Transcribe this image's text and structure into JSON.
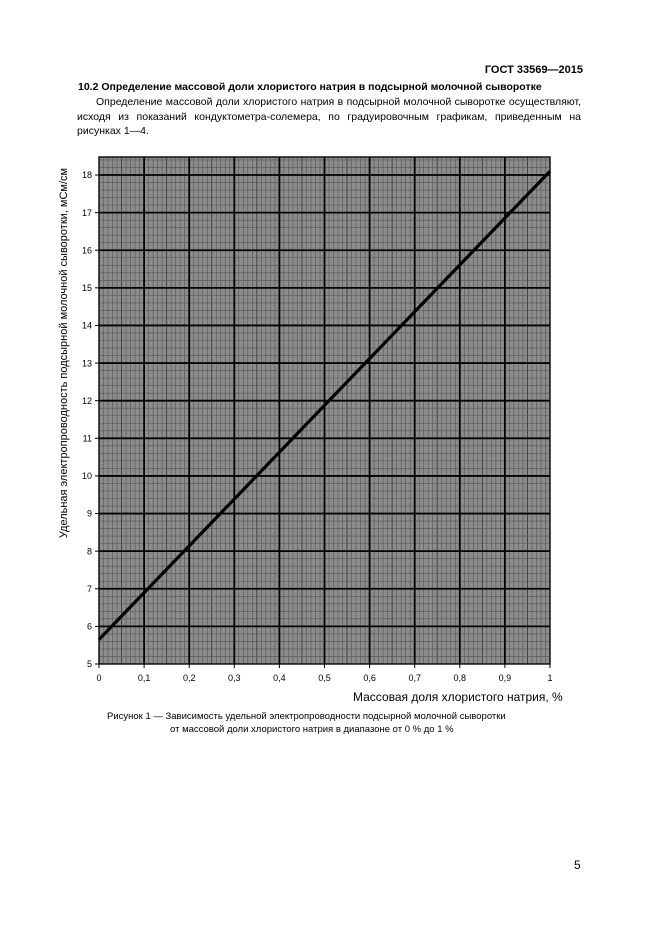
{
  "header": {
    "doc_code": "ГОСТ 33569—2015"
  },
  "section": {
    "heading": "10.2 Определение массовой доли хлористого натрия в подсырной молочной сыворотке",
    "paragraph": "Определение массовой доли хлористого натрия в подсырной молочной сыворотке осуществляют, исходя из показаний кондуктометра-солемера, по градуировочным графикам, приведенным на рисунках 1—4."
  },
  "figure": {
    "caption_line1": "Рисунок 1 — Зависимость удельной электропроводности подсырной молочной сыворотки",
    "caption_line2": "от массовой доли хлористого натрия в диапазоне от 0 % до 1 %"
  },
  "chart_data": {
    "type": "line",
    "xlabel": "Массовая доля хлористого натрия, %",
    "ylabel": "Удельная электропроводность подсырной молочной сыворотки, мСм/см",
    "xlim": [
      0,
      1
    ],
    "ylim": [
      5,
      18.5
    ],
    "x_ticks": [
      "0",
      "0,1",
      "0,2",
      "0,3",
      "0,4",
      "0,5",
      "0,6",
      "0,7",
      "0,8",
      "0,9",
      "1"
    ],
    "y_ticks": [
      "5",
      "6",
      "7",
      "8",
      "9",
      "10",
      "11",
      "12",
      "13",
      "14",
      "15",
      "16",
      "17",
      "18"
    ],
    "grid": "millimetre grid (major 0.1 % × 1 mS/cm, minor 0.01 % × 0.2 mS/cm)",
    "series": [
      {
        "x": [
          0,
          1
        ],
        "y": [
          5.65,
          18.1
        ]
      }
    ]
  },
  "page": {
    "number": "5"
  }
}
